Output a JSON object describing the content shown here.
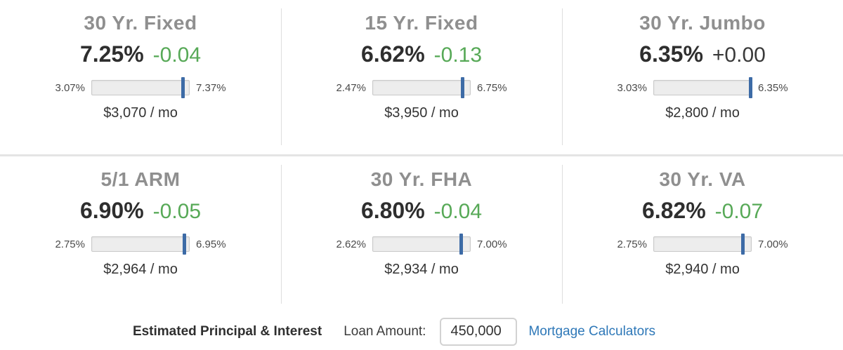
{
  "colors": {
    "title_gray": "#8f8f8f",
    "rate_dark": "#2e2e2e",
    "change_green": "#57a957",
    "change_neutral": "#3a3a3a",
    "marker_blue": "#3d6ba6",
    "link_blue": "#2e78b8"
  },
  "cards": [
    {
      "title": "30 Yr. Fixed",
      "rate": "7.25%",
      "change": "-0.04",
      "change_color": "#57a957",
      "range_min": "3.07%",
      "range_max": "7.37%",
      "marker_pct": 94,
      "payment": "$3,070 / mo"
    },
    {
      "title": "15 Yr. Fixed",
      "rate": "6.62%",
      "change": "-0.13",
      "change_color": "#57a957",
      "range_min": "2.47%",
      "range_max": "6.75%",
      "marker_pct": 93,
      "payment": "$3,950 / mo"
    },
    {
      "title": "30 Yr. Jumbo",
      "rate": "6.35%",
      "change": "+0.00",
      "change_color": "#3a3a3a",
      "range_min": "3.03%",
      "range_max": "6.35%",
      "marker_pct": 100,
      "payment": "$2,800 / mo"
    },
    {
      "title": "5/1 ARM",
      "rate": "6.90%",
      "change": "-0.05",
      "change_color": "#57a957",
      "range_min": "2.75%",
      "range_max": "6.95%",
      "marker_pct": 96,
      "payment": "$2,964 / mo"
    },
    {
      "title": "30 Yr. FHA",
      "rate": "6.80%",
      "change": "-0.04",
      "change_color": "#57a957",
      "range_min": "2.62%",
      "range_max": "7.00%",
      "marker_pct": 91,
      "payment": "$2,934 / mo"
    },
    {
      "title": "30 Yr. VA",
      "rate": "6.82%",
      "change": "-0.07",
      "change_color": "#57a957",
      "range_min": "2.75%",
      "range_max": "7.00%",
      "marker_pct": 92,
      "payment": "$2,940 / mo"
    }
  ],
  "footer": {
    "heading": "Estimated Principal & Interest",
    "loan_amount_label": "Loan Amount:",
    "loan_amount_value": "450,000",
    "calculators_link": "Mortgage Calculators"
  }
}
